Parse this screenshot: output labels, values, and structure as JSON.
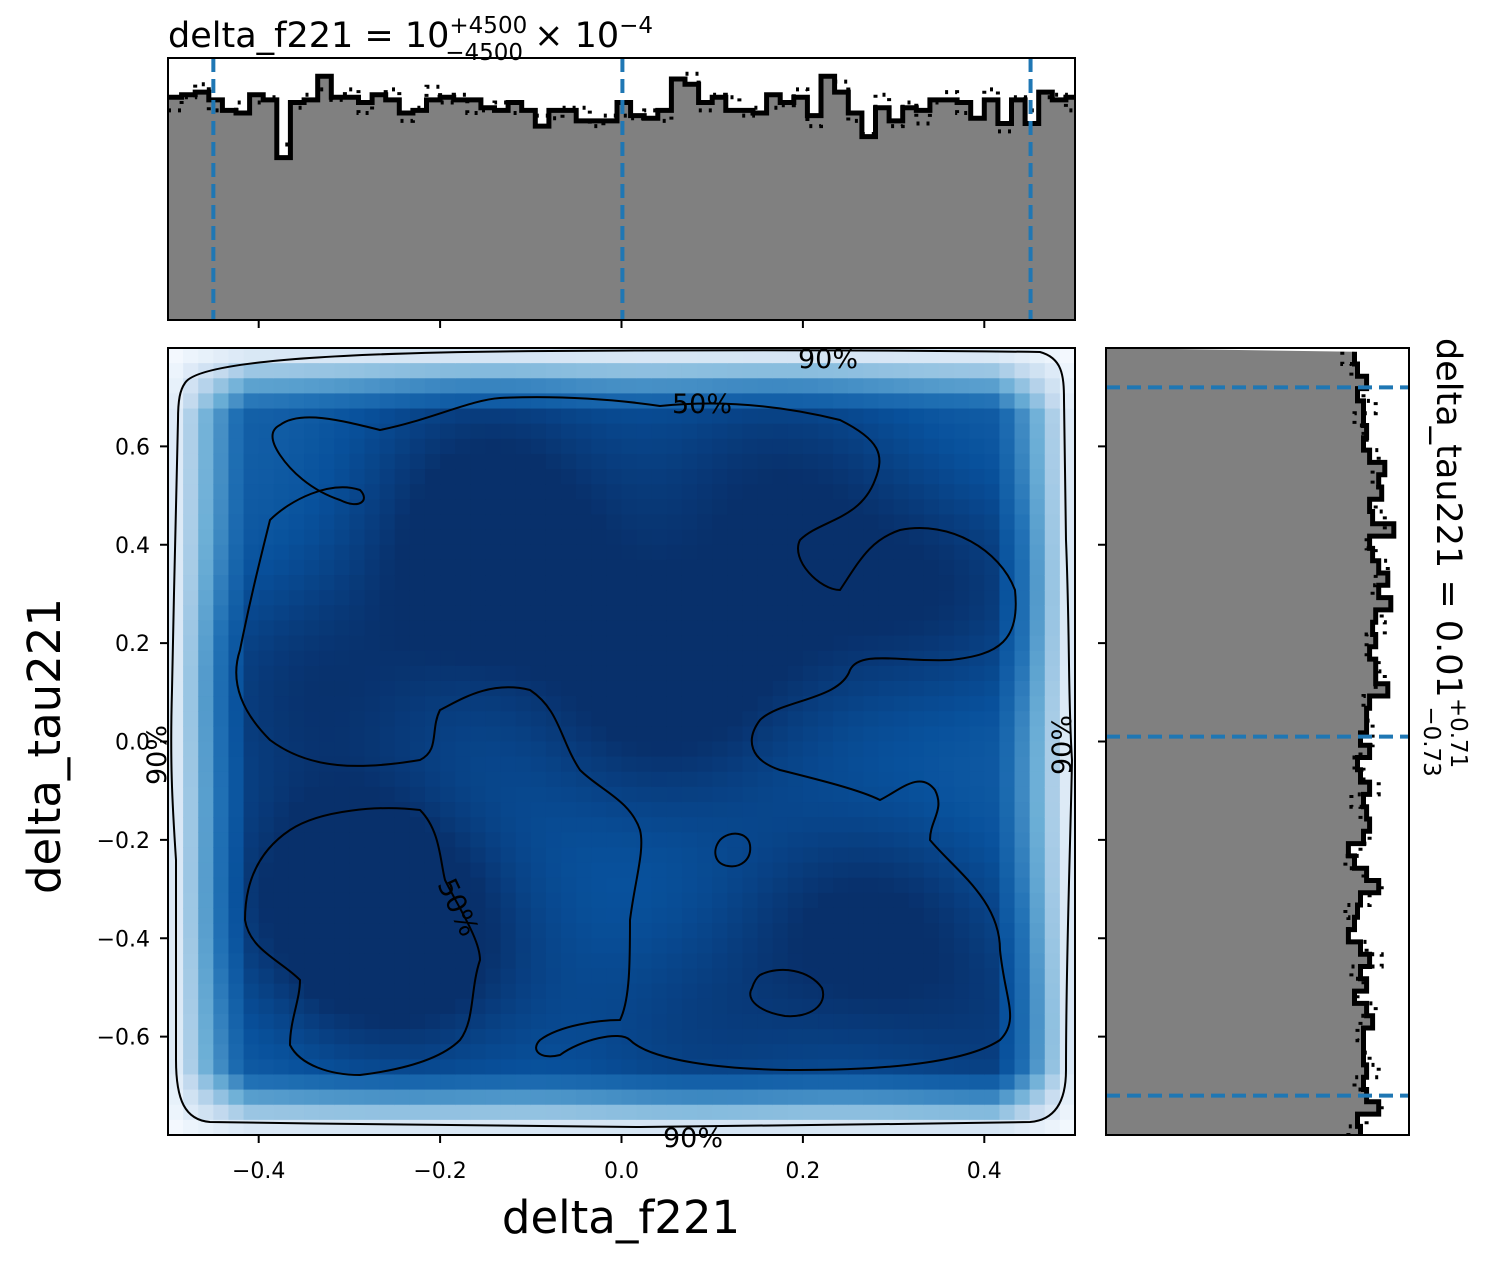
{
  "chart_data": [
    {
      "type": "area",
      "panel": "top-marginal-histogram",
      "title_param": "delta_f221 = ",
      "title_value": "10",
      "title_sup": "+4500",
      "title_sub": "−4500",
      "title_mult": " × 10",
      "title_exp": "−4",
      "x": [
        -0.5,
        -0.485,
        -0.47,
        -0.455,
        -0.44,
        -0.425,
        -0.41,
        -0.395,
        -0.38,
        -0.365,
        -0.35,
        -0.335,
        -0.32,
        -0.305,
        -0.29,
        -0.275,
        -0.26,
        -0.245,
        -0.23,
        -0.215,
        -0.2,
        -0.185,
        -0.17,
        -0.155,
        -0.14,
        -0.125,
        -0.11,
        -0.095,
        -0.08,
        -0.065,
        -0.05,
        -0.035,
        -0.02,
        -0.005,
        0.01,
        0.025,
        0.04,
        0.055,
        0.07,
        0.085,
        0.1,
        0.115,
        0.13,
        0.145,
        0.16,
        0.175,
        0.19,
        0.205,
        0.22,
        0.235,
        0.25,
        0.265,
        0.28,
        0.295,
        0.31,
        0.325,
        0.34,
        0.355,
        0.37,
        0.385,
        0.4,
        0.415,
        0.43,
        0.445,
        0.46,
        0.475,
        0.49
      ],
      "density": [
        0.85,
        0.86,
        0.87,
        0.84,
        0.8,
        0.79,
        0.86,
        0.84,
        0.62,
        0.83,
        0.84,
        0.93,
        0.85,
        0.85,
        0.83,
        0.86,
        0.84,
        0.79,
        0.8,
        0.84,
        0.85,
        0.84,
        0.84,
        0.81,
        0.8,
        0.83,
        0.8,
        0.74,
        0.8,
        0.8,
        0.76,
        0.76,
        0.76,
        0.83,
        0.78,
        0.77,
        0.8,
        0.92,
        0.9,
        0.83,
        0.85,
        0.8,
        0.8,
        0.79,
        0.86,
        0.83,
        0.85,
        0.78,
        0.93,
        0.87,
        0.79,
        0.7,
        0.81,
        0.76,
        0.81,
        0.8,
        0.84,
        0.84,
        0.83,
        0.77,
        0.84,
        0.75,
        0.84,
        0.75,
        0.87,
        0.84,
        0.85
      ],
      "quantiles": [
        -0.45,
        0.001,
        0.451
      ],
      "xlim": [
        -0.5,
        0.5
      ]
    },
    {
      "type": "heatmap",
      "panel": "joint-density",
      "xlabel": "delta_f221",
      "ylabel": "delta_tau221",
      "xlim": [
        -0.5,
        0.5
      ],
      "ylim": [
        -0.8,
        0.8
      ],
      "xticks": [
        -0.4,
        -0.2,
        0.0,
        0.2,
        0.4
      ],
      "xtick_labels": [
        "−0.4",
        "−0.2",
        "0.0",
        "0.2",
        "0.4"
      ],
      "yticks": [
        0.6,
        0.4,
        0.2,
        0.0,
        -0.2,
        -0.4,
        -0.6
      ],
      "ytick_labels": [
        "0.6",
        "0.4",
        "0.2",
        "0.0",
        "−0.2",
        "−0.4",
        "−0.6"
      ],
      "colormap": [
        "#f7fbff",
        "#c6dbef",
        "#6baed6",
        "#2171b5",
        "#08519c",
        "#08306b"
      ],
      "density_peaks": [
        {
          "x": -0.3,
          "y": -0.28,
          "weight": 1.0
        },
        {
          "x": -0.24,
          "y": -0.45,
          "weight": 1.0
        },
        {
          "x": -0.14,
          "y": 0.33,
          "weight": 1.0
        },
        {
          "x": -0.35,
          "y": 0.11,
          "weight": 0.8
        },
        {
          "x": 0.03,
          "y": 0.04,
          "weight": 0.8
        },
        {
          "x": 0.17,
          "y": 0.54,
          "weight": 0.8
        },
        {
          "x": 0.27,
          "y": -0.37,
          "weight": 1.0
        },
        {
          "x": 0.35,
          "y": 0.3,
          "weight": 0.85
        },
        {
          "x": -0.15,
          "y": 0.58,
          "weight": 0.7
        },
        {
          "x": 0.13,
          "y": 0.21,
          "weight": 0.6
        },
        {
          "x": 0.08,
          "y": -0.6,
          "weight": 0.6
        },
        {
          "x": 0.43,
          "y": -0.62,
          "weight": 0.6
        }
      ],
      "contours": [
        {
          "level": "50%",
          "label": "50%"
        },
        {
          "level": "90%",
          "label": "90%"
        }
      ]
    },
    {
      "type": "area",
      "panel": "right-marginal-histogram",
      "title_param": "delta_tau221 = ",
      "title_value": "0.01",
      "title_sup": "+0.71",
      "title_sub": "−0.73",
      "y": [
        0.78,
        0.755,
        0.73,
        0.705,
        0.68,
        0.655,
        0.63,
        0.605,
        0.58,
        0.555,
        0.53,
        0.505,
        0.48,
        0.455,
        0.43,
        0.405,
        0.38,
        0.355,
        0.33,
        0.305,
        0.28,
        0.255,
        0.23,
        0.205,
        0.18,
        0.155,
        0.13,
        0.105,
        0.08,
        0.055,
        0.03,
        0.005,
        -0.02,
        -0.045,
        -0.07,
        -0.095,
        -0.12,
        -0.145,
        -0.17,
        -0.195,
        -0.22,
        -0.245,
        -0.27,
        -0.295,
        -0.32,
        -0.345,
        -0.37,
        -0.395,
        -0.42,
        -0.445,
        -0.47,
        -0.495,
        -0.52,
        -0.545,
        -0.57,
        -0.595,
        -0.62,
        -0.645,
        -0.67,
        -0.695,
        -0.72,
        -0.745,
        -0.77,
        -0.795
      ],
      "density": [
        0.82,
        0.83,
        0.86,
        0.83,
        0.85,
        0.85,
        0.86,
        0.85,
        0.87,
        0.92,
        0.9,
        0.91,
        0.87,
        0.88,
        0.95,
        0.87,
        0.88,
        0.9,
        0.93,
        0.9,
        0.94,
        0.89,
        0.88,
        0.89,
        0.87,
        0.89,
        0.89,
        0.93,
        0.87,
        0.86,
        0.86,
        0.84,
        0.87,
        0.83,
        0.84,
        0.87,
        0.85,
        0.86,
        0.87,
        0.85,
        0.8,
        0.82,
        0.86,
        0.9,
        0.84,
        0.83,
        0.82,
        0.8,
        0.84,
        0.87,
        0.84,
        0.86,
        0.82,
        0.86,
        0.88,
        0.85,
        0.85,
        0.85,
        0.86,
        0.85,
        0.86,
        0.9,
        0.83,
        0.84
      ],
      "quantiles": [
        0.72,
        0.01,
        -0.72
      ],
      "ylim": [
        -0.8,
        0.8
      ]
    }
  ]
}
